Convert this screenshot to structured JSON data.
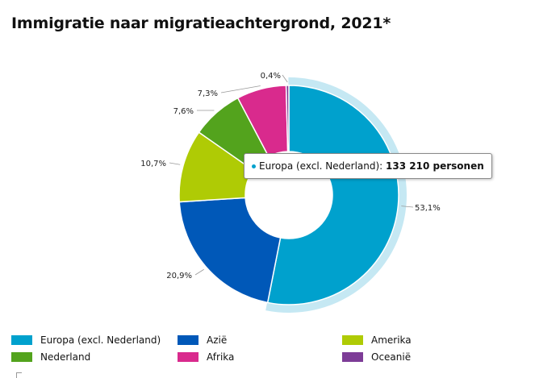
{
  "title": "Immigratie naar migratieachtergrond, 2021*",
  "chart_data": {
    "type": "pie",
    "title": "Immigratie naar migratieachtergrond, 2021*",
    "unit": "%",
    "slices": [
      {
        "name": "Europa (excl. Nederland)",
        "value": 53.1,
        "label": "53,1%",
        "color": "#00a1cd",
        "highlighted": true
      },
      {
        "name": "Azië",
        "value": 20.9,
        "label": "20,9%",
        "color": "#0058b8"
      },
      {
        "name": "Amerika",
        "value": 10.7,
        "label": "10,7%",
        "color": "#afcb05"
      },
      {
        "name": "Nederland",
        "value": 7.6,
        "label": "7,6%",
        "color": "#53a31d"
      },
      {
        "name": "Afrika",
        "value": 7.3,
        "label": "7,3%",
        "color": "#d92a8d"
      },
      {
        "name": "Oceanië",
        "value": 0.4,
        "label": "0,4%",
        "color": "#7d3c97"
      }
    ],
    "highlight_color": "#c5e8f3",
    "legend_placement": "bottom"
  },
  "tooltip": {
    "series_name": "Europa (excl. Nederland):",
    "value_text": "133 210 personen",
    "dot_color": "#00a1cd"
  },
  "legend": [
    {
      "label": "Europa (excl. Nederland)",
      "color": "#00a1cd"
    },
    {
      "label": "Azië",
      "color": "#0058b8"
    },
    {
      "label": "Amerika",
      "color": "#afcb05"
    },
    {
      "label": "Nederland",
      "color": "#53a31d"
    },
    {
      "label": "Afrika",
      "color": "#d92a8d"
    },
    {
      "label": "Oceanië",
      "color": "#7d3c97"
    }
  ]
}
